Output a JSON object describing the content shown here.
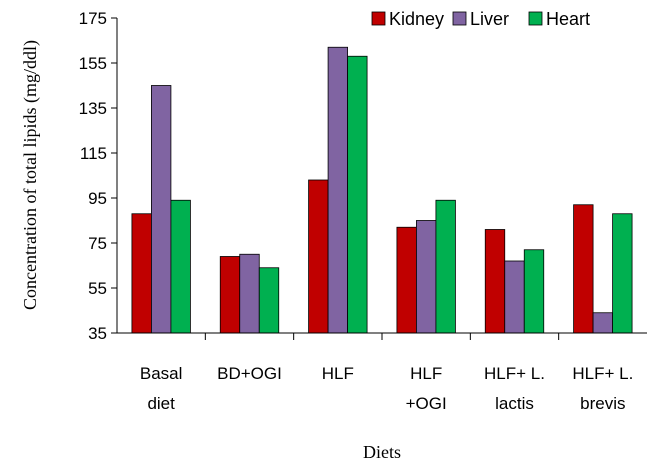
{
  "chart_data": {
    "type": "bar",
    "title": "",
    "xlabel": "Diets",
    "ylabel": "Concentration of total lipids (mg/ddl)",
    "ylim": [
      35,
      175
    ],
    "yticks": [
      35,
      55,
      75,
      95,
      115,
      135,
      155,
      175
    ],
    "categories": [
      [
        "Basal",
        "diet"
      ],
      [
        "BD+OGI"
      ],
      [
        "HLF"
      ],
      [
        "HLF",
        "+OGI"
      ],
      [
        "HLF+ L.",
        "lactis"
      ],
      [
        "HLF+ L.",
        "brevis"
      ]
    ],
    "series": [
      {
        "name": "Kidney",
        "color": "#c00000",
        "values": [
          88,
          69,
          103,
          82,
          81,
          92
        ]
      },
      {
        "name": "Liver",
        "color": "#8064a2",
        "values": [
          145,
          70,
          162,
          85,
          67,
          44
        ]
      },
      {
        "name": "Heart",
        "color": "#00b050",
        "values": [
          94,
          64,
          158,
          94,
          72,
          88
        ]
      }
    ],
    "legend_position": "top-right",
    "grid": false
  }
}
